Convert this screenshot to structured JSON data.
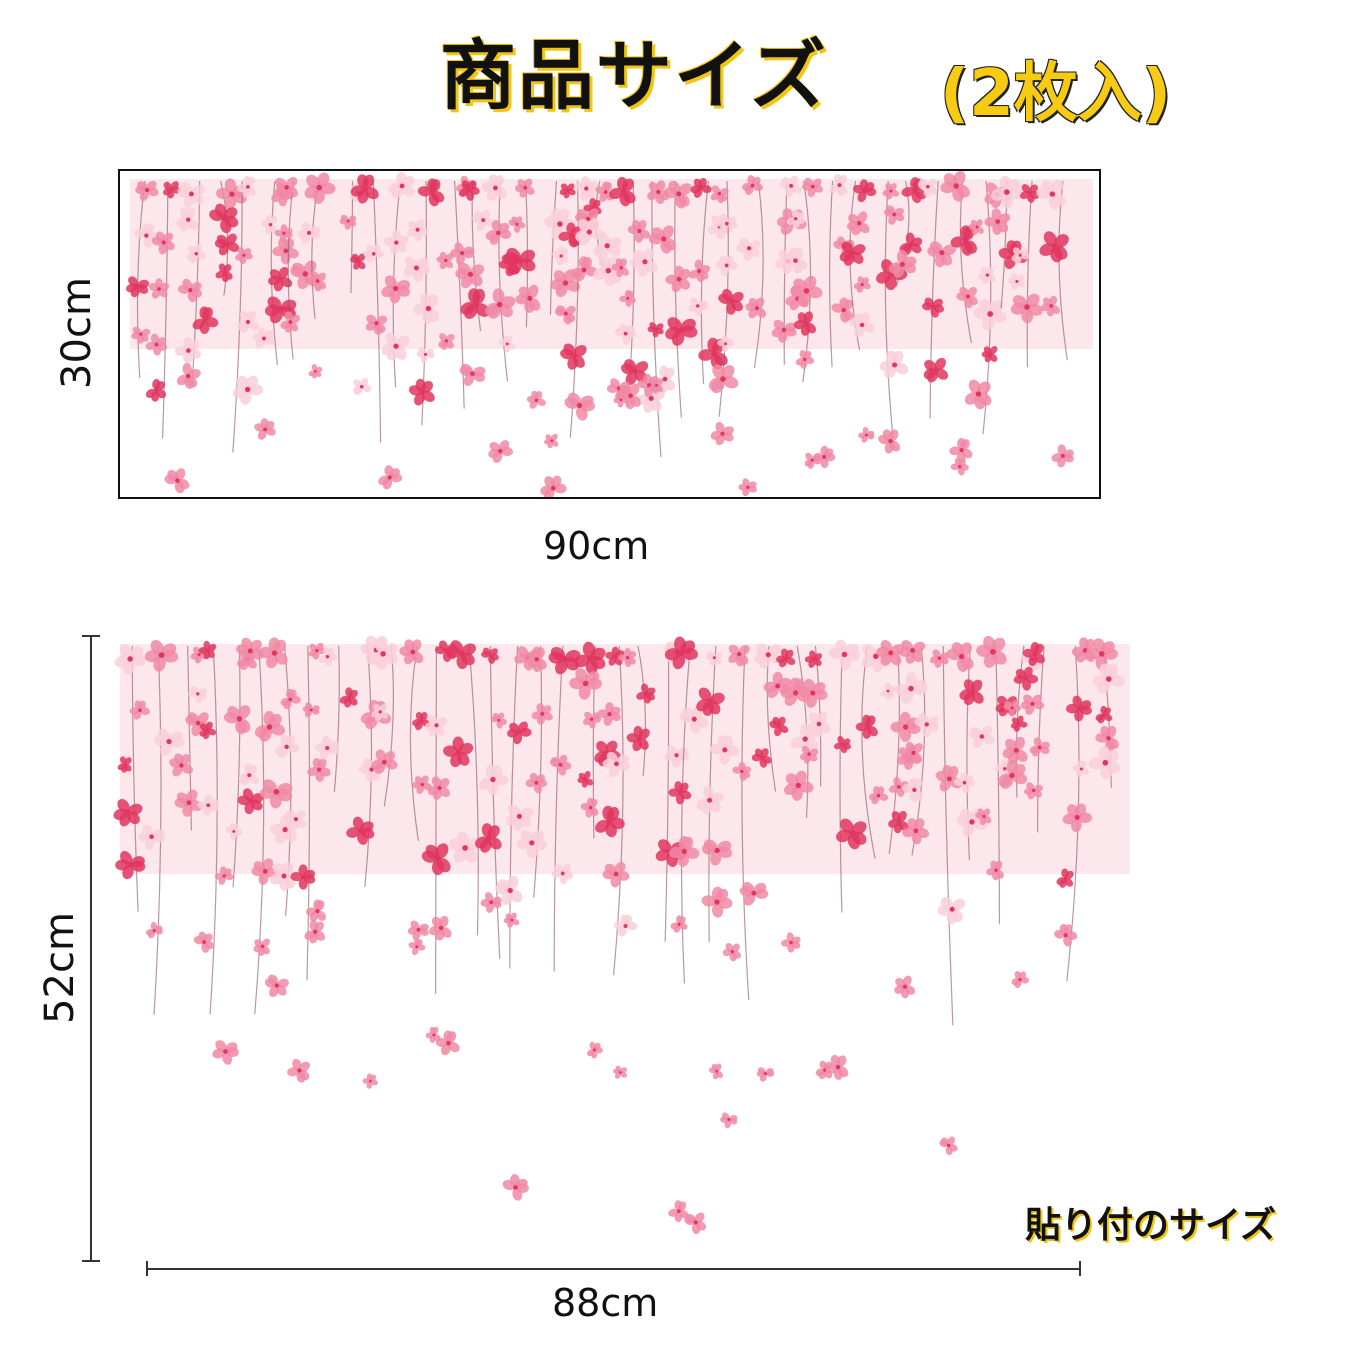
{
  "header": {
    "title": "商品サイズ",
    "count": "(2枚入)"
  },
  "product": {
    "height_label": "30cm",
    "width_label": "90cm"
  },
  "applied": {
    "height_label": "52cm",
    "width_label": "88cm",
    "caption": "貼り付のサイズ"
  },
  "colors": {
    "accent_yellow": "#f2c511",
    "blossom_pink": "#f08aa6",
    "blossom_deep": "#e0365f",
    "blossom_light": "#f9cfd9",
    "stem": "#8a5560"
  }
}
